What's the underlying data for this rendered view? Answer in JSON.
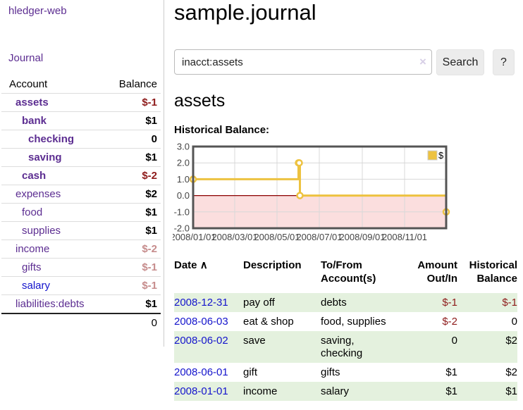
{
  "colors": {
    "accent_purple": "#5C2D91",
    "link_blue": "#1414CC",
    "negative_strong": "#8E1B1B",
    "negative_soft": "#C68C8C",
    "row_highlight_green": "#E4F1DE",
    "chart_series_yellow": "#EDC240",
    "chart_negative_fill": "#FBDEDE",
    "chart_zero_line": "#8B0000"
  },
  "sidebar": {
    "app_title": "hledger-web",
    "nav": {
      "journal": "Journal"
    },
    "accounts_table": {
      "headers": {
        "account": "Account",
        "balance": "Balance"
      },
      "rows": [
        {
          "name": "assets",
          "depth": 1,
          "bold": true,
          "balance": "$-1",
          "balance_style": "neg-strong"
        },
        {
          "name": "bank",
          "depth": 2,
          "bold": true,
          "balance": "$1",
          "balance_style": "pos"
        },
        {
          "name": "checking",
          "depth": 3,
          "bold": true,
          "balance": "0",
          "balance_style": "pos"
        },
        {
          "name": "saving",
          "depth": 3,
          "bold": true,
          "balance": "$1",
          "balance_style": "pos"
        },
        {
          "name": "cash",
          "depth": 2,
          "bold": true,
          "balance": "$-2",
          "balance_style": "neg-strong"
        },
        {
          "name": "expenses",
          "depth": 1,
          "bold": false,
          "balance": "$2",
          "balance_style": "pos"
        },
        {
          "name": "food",
          "depth": 2,
          "bold": false,
          "balance": "$1",
          "balance_style": "pos"
        },
        {
          "name": "supplies",
          "depth": 2,
          "bold": false,
          "balance": "$1",
          "balance_style": "pos"
        },
        {
          "name": "income",
          "depth": 1,
          "bold": false,
          "balance": "$-2",
          "balance_style": "neg-soft"
        },
        {
          "name": "gifts",
          "depth": 2,
          "bold": false,
          "balance": "$-1",
          "balance_style": "neg-soft"
        },
        {
          "name": "salary",
          "depth": 2,
          "bold": false,
          "link_color": "blue",
          "balance": "$-1",
          "balance_style": "neg-soft"
        },
        {
          "name": "liabilities:debts",
          "depth": 1,
          "bold": false,
          "balance": "$1",
          "balance_style": "pos"
        }
      ],
      "total": "0"
    }
  },
  "header": {
    "title": "sample.journal"
  },
  "search": {
    "query": "inacct:assets",
    "clear_icon": "×",
    "button": "Search",
    "help": "?"
  },
  "account_page": {
    "heading": "assets",
    "chart_label": "Historical Balance:"
  },
  "chart_data": {
    "type": "line",
    "title": "Historical Balance:",
    "steps": true,
    "series": [
      {
        "name": "$",
        "color": "#EDC240",
        "points": [
          [
            "2008-01-01",
            1
          ],
          [
            "2008-06-01",
            2
          ],
          [
            "2008-06-02",
            2
          ],
          [
            "2008-06-03",
            0
          ],
          [
            "2008-12-31",
            -1
          ]
        ]
      }
    ],
    "x_range": [
      "2008-01-01",
      "2008-12-31"
    ],
    "ylim": [
      -2,
      3
    ],
    "y_ticks": [
      "3.0",
      "2.0",
      "1.0",
      "0.0",
      "-1.0",
      "-2.0"
    ],
    "x_ticks": [
      "2008/01/01",
      "2008/03/01",
      "2008/05/01",
      "2008/07/01",
      "2008/09/01",
      "2008/11/01"
    ],
    "grid": true,
    "legend_position": "top-right",
    "negative_fill": "#FBDEDE",
    "zero_line_color": "#8B0000"
  },
  "register_table": {
    "headers": {
      "date": "Date",
      "sort_indicator": "∧",
      "description": "Description",
      "tofrom": "To/From Account(s)",
      "amount": "Amount Out/In",
      "balance": "Historical Balance"
    },
    "rows": [
      {
        "date": "2008-12-31",
        "description": "pay off",
        "account_lines": [
          "debts"
        ],
        "amount": "$-1",
        "amount_neg": true,
        "balance": "$-1",
        "balance_neg": true,
        "shade": true
      },
      {
        "date": "2008-06-03",
        "description": "eat & shop",
        "account_lines": [
          "food, supplies"
        ],
        "amount": "$-2",
        "amount_neg": true,
        "balance": "0",
        "balance_neg": false,
        "shade": false
      },
      {
        "date": "2008-06-02",
        "description": "save",
        "account_lines": [
          "saving,",
          "checking"
        ],
        "amount": "0",
        "amount_neg": false,
        "balance": "$2",
        "balance_neg": false,
        "shade": true
      },
      {
        "date": "2008-06-01",
        "description": "gift",
        "account_lines": [
          "gifts"
        ],
        "amount": "$1",
        "amount_neg": false,
        "balance": "$2",
        "balance_neg": false,
        "shade": false
      },
      {
        "date": "2008-01-01",
        "description": "income",
        "account_lines": [
          "salary"
        ],
        "amount": "$1",
        "amount_neg": false,
        "balance": "$1",
        "balance_neg": false,
        "shade": true
      }
    ]
  }
}
